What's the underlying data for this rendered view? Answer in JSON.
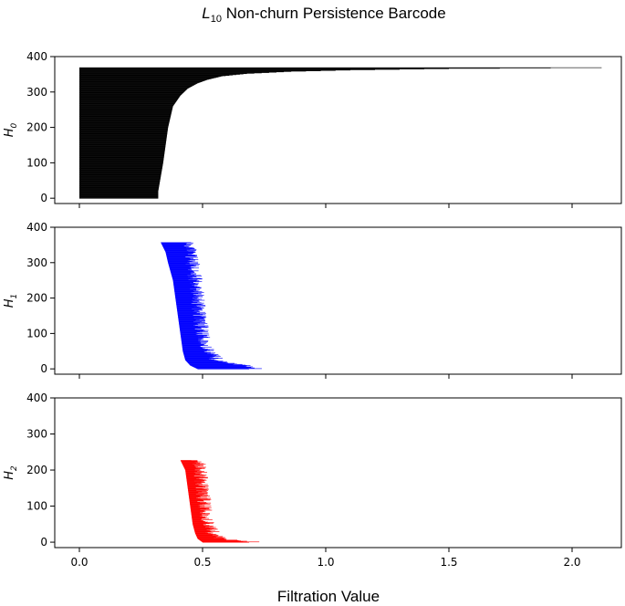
{
  "title": {
    "main": "L",
    "sub": "10",
    "rest": " Non-churn Persistence Barcode"
  },
  "xlabel": "Filtration Value",
  "chart_data": [
    {
      "type": "barcode",
      "ylabel": {
        "main": "H",
        "sub": "0"
      },
      "color": "#000000",
      "xlim": [
        -0.1,
        2.2
      ],
      "ylim": [
        -15,
        400
      ],
      "xticks": [
        0.0,
        0.5,
        1.0,
        1.5,
        2.0
      ],
      "xtick_labels_visible": false,
      "yticks": [
        0,
        100,
        200,
        300,
        400
      ],
      "bar_count": 370,
      "births": 0.0,
      "death_profile": [
        [
          0,
          0.32
        ],
        [
          20,
          0.32
        ],
        [
          60,
          0.33
        ],
        [
          100,
          0.34
        ],
        [
          150,
          0.35
        ],
        [
          200,
          0.36
        ],
        [
          230,
          0.37
        ],
        [
          260,
          0.38
        ],
        [
          290,
          0.41
        ],
        [
          310,
          0.44
        ],
        [
          325,
          0.48
        ],
        [
          335,
          0.52
        ],
        [
          345,
          0.58
        ],
        [
          352,
          0.68
        ],
        [
          358,
          0.86
        ],
        [
          362,
          1.1
        ],
        [
          366,
          1.5
        ],
        [
          369,
          2.12
        ]
      ]
    },
    {
      "type": "barcode",
      "ylabel": {
        "main": "H",
        "sub": "1"
      },
      "color": "#0000ff",
      "xlim": [
        -0.1,
        2.2
      ],
      "ylim": [
        -15,
        400
      ],
      "xticks": [
        0.0,
        0.5,
        1.0,
        1.5,
        2.0
      ],
      "xtick_labels_visible": false,
      "yticks": [
        0,
        100,
        200,
        300,
        400
      ],
      "bar_count": 358,
      "birth_profile": [
        [
          0,
          0.48
        ],
        [
          10,
          0.45
        ],
        [
          25,
          0.43
        ],
        [
          50,
          0.42
        ],
        [
          100,
          0.41
        ],
        [
          150,
          0.4
        ],
        [
          200,
          0.39
        ],
        [
          250,
          0.38
        ],
        [
          300,
          0.36
        ],
        [
          330,
          0.35
        ],
        [
          358,
          0.33
        ]
      ],
      "death_profile": [
        [
          0,
          0.71
        ],
        [
          8,
          0.68
        ],
        [
          15,
          0.6
        ],
        [
          25,
          0.55
        ],
        [
          40,
          0.53
        ],
        [
          60,
          0.51
        ],
        [
          100,
          0.49
        ],
        [
          150,
          0.48
        ],
        [
          200,
          0.47
        ],
        [
          260,
          0.46
        ],
        [
          300,
          0.45
        ],
        [
          330,
          0.44
        ],
        [
          358,
          0.43
        ]
      ]
    },
    {
      "type": "barcode",
      "ylabel": {
        "main": "H",
        "sub": "2"
      },
      "color": "#ff0000",
      "xlim": [
        -0.1,
        2.2
      ],
      "ylim": [
        -15,
        400
      ],
      "xticks": [
        0.0,
        0.5,
        1.0,
        1.5,
        2.0
      ],
      "xtick_labels_visible": true,
      "xtick_labels": [
        "0.0",
        "0.5",
        "1.0",
        "1.5",
        "2.0"
      ],
      "yticks": [
        0,
        100,
        200,
        300,
        400
      ],
      "bar_count": 228,
      "birth_profile": [
        [
          0,
          0.5
        ],
        [
          10,
          0.48
        ],
        [
          25,
          0.47
        ],
        [
          50,
          0.46
        ],
        [
          100,
          0.45
        ],
        [
          150,
          0.44
        ],
        [
          200,
          0.43
        ],
        [
          228,
          0.41
        ]
      ],
      "death_profile": [
        [
          0,
          0.71
        ],
        [
          5,
          0.64
        ],
        [
          10,
          0.56
        ],
        [
          20,
          0.54
        ],
        [
          40,
          0.52
        ],
        [
          70,
          0.51
        ],
        [
          100,
          0.5
        ],
        [
          150,
          0.49
        ],
        [
          200,
          0.48
        ],
        [
          228,
          0.47
        ]
      ]
    }
  ]
}
